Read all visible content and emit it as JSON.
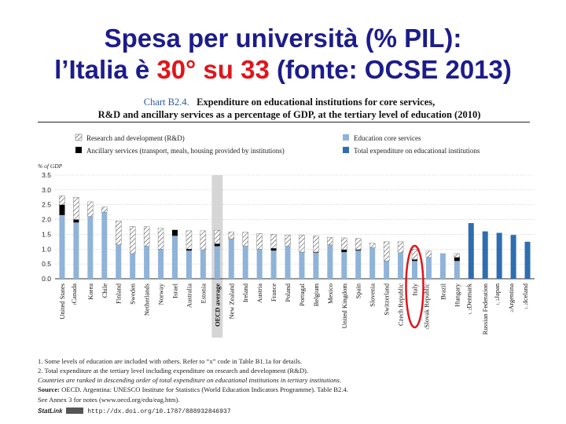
{
  "slide": {
    "title_line1": "Spesa per università (% PIL):",
    "title_line2_a": "l’Italia è ",
    "title_line2_highlight": "30° su 33",
    "title_line2_b": " (fonte: OCSE 2013)"
  },
  "chart_header": {
    "label": "Chart B2.4.",
    "line1": "Expenditure on educational institutions for core services,",
    "line2": "R&D and ancillary services as a percentage of GDP, at the tertiary level of education (2010)"
  },
  "legend": {
    "rd": "Research and development (R&D)",
    "ancillary": "Ancillary services (transport, meals, housing provided by institutions)",
    "core": "Education core services",
    "total": "Total expenditure on educational institutions"
  },
  "colors": {
    "core": "#8fb3d9",
    "total": "#2e6db0",
    "ancillary": "#000000",
    "oecd_band": "#d6d6d6",
    "highlight_circle": "#e0151b",
    "title": "#1c1c8c"
  },
  "chart_data": {
    "type": "bar",
    "stacked": true,
    "ylabel": "% of GDP",
    "ylim": [
      0,
      3.5
    ],
    "yticks": [
      "0.0",
      "0.5",
      "1.0",
      "1.5",
      "2.0",
      "2.5",
      "3.0",
      "3.5"
    ],
    "categories": [
      "United States",
      "Canada",
      "Korea",
      "Chile",
      "Finland",
      "Sweden",
      "Netherlands",
      "Norway",
      "Israel",
      "Australia",
      "Estonia",
      "OECD average",
      "New Zealand",
      "Ireland",
      "Austria",
      "France",
      "Poland",
      "Portugal",
      "Belgium",
      "Mexico",
      "United Kingdom",
      "Spain",
      "Slovenia",
      "Switzerland",
      "Czech Republic",
      "Italy",
      "Slovak Republic",
      "Brazil",
      "Hungary",
      "Denmark",
      "Russian Federation",
      "Japan",
      "Argentina",
      "Iceland"
    ],
    "category_superscripts": [
      "",
      "1",
      "",
      "",
      "",
      "",
      "",
      "",
      "",
      "",
      "",
      "",
      "",
      "",
      "",
      "",
      "",
      "",
      "",
      "",
      "",
      "",
      "",
      "",
      "",
      "",
      "1",
      "",
      "",
      "1, 2",
      "",
      "1, 2",
      "2",
      "1, 2"
    ],
    "series": [
      {
        "name": "Education core services",
        "values": [
          2.15,
          1.9,
          2.1,
          2.25,
          1.15,
          0.85,
          1.1,
          1.0,
          1.45,
          0.95,
          0.98,
          1.1,
          1.35,
          1.1,
          1.0,
          0.95,
          1.1,
          0.9,
          0.88,
          1.15,
          0.9,
          0.95,
          1.05,
          0.6,
          0.88,
          0.6,
          0.72,
          0.86,
          0.6,
          null,
          null,
          null,
          null,
          null
        ]
      },
      {
        "name": "Ancillary services (transport, meals, housing provided by institutions)",
        "values": [
          0.35,
          0.1,
          0.0,
          0.0,
          0.0,
          0.0,
          0.0,
          0.0,
          0.2,
          0.05,
          0.0,
          0.08,
          0.0,
          0.0,
          0.0,
          0.08,
          0.0,
          0.0,
          0.02,
          0.0,
          0.08,
          0.03,
          0.0,
          0.0,
          0.0,
          0.05,
          0.0,
          0.0,
          0.12,
          null,
          null,
          null,
          null,
          null
        ]
      },
      {
        "name": "Research and development (R&D)",
        "values": [
          0.3,
          0.75,
          0.5,
          0.17,
          0.8,
          0.92,
          0.66,
          0.7,
          0.0,
          0.62,
          0.64,
          0.46,
          0.23,
          0.47,
          0.53,
          0.47,
          0.38,
          0.58,
          0.55,
          0.25,
          0.4,
          0.38,
          0.15,
          0.65,
          0.37,
          0.35,
          0.22,
          0.0,
          0.13,
          null,
          null,
          null,
          null,
          null
        ]
      },
      {
        "name": "Total expenditure on educational institutions",
        "values": [
          null,
          null,
          null,
          null,
          null,
          null,
          null,
          null,
          null,
          null,
          null,
          null,
          null,
          null,
          null,
          null,
          null,
          null,
          null,
          null,
          null,
          null,
          null,
          null,
          null,
          null,
          null,
          null,
          null,
          1.88,
          1.6,
          1.55,
          1.48,
          1.25
        ]
      }
    ],
    "highlight": "OECD average",
    "circled": "Italy"
  },
  "footnotes": {
    "n1": "1. Some levels of education are included with others. Refer to “x” code in Table B1.1a for details.",
    "n2": "2. Total expenditure at the tertiary level including expenditure on research and development (R&D).",
    "ranking": "Countries are ranked in descending order of total expenditure on educational institutions in tertiary institutions.",
    "source_label": "Source:",
    "source_text": " OECD. Argentina: UNESCO Institute for Statistics (World Education Indicators Programme). Table B2.4.",
    "annex": "See Annex 3 for notes (www.oecd.org/edu/eag.htm).",
    "statlink_label": "StatLink",
    "statlink_url": "http://dx.doi.org/10.1787/888932846937"
  }
}
